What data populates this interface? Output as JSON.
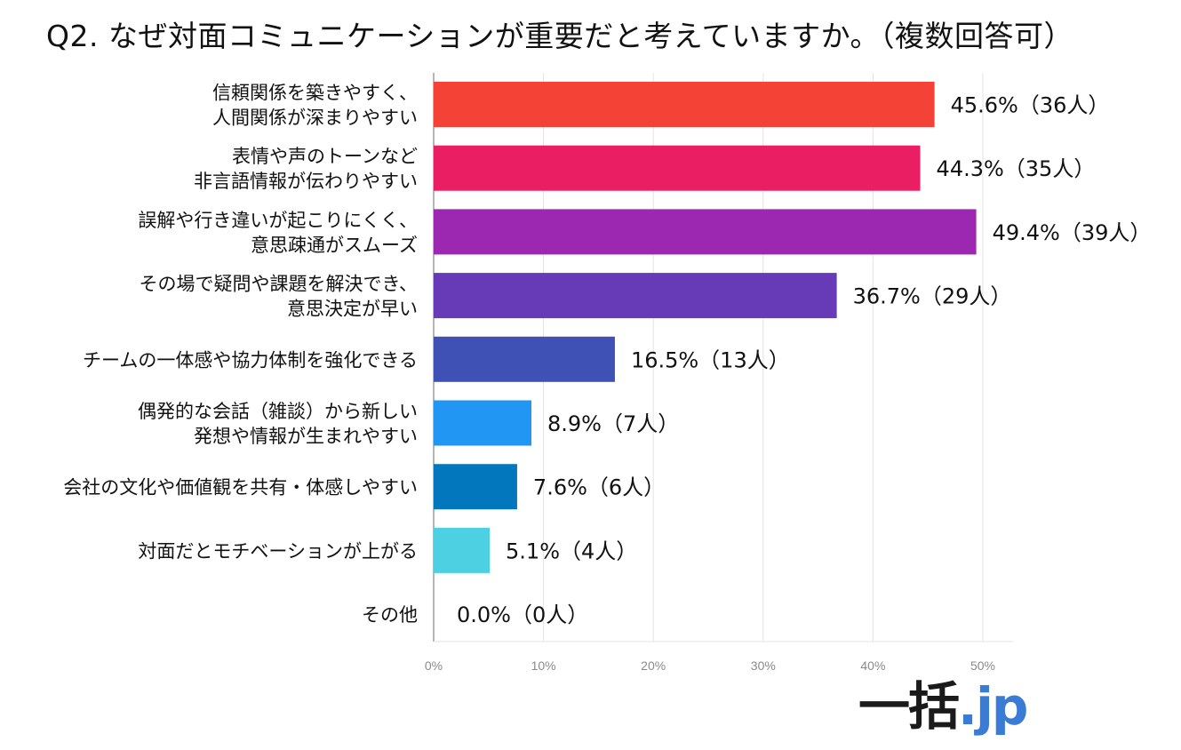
{
  "title": "Q2. なぜ対面コミュニケーションが重要だと考えていますか。（複数回答可）",
  "chart_data": {
    "type": "bar",
    "orientation": "horizontal",
    "title": "Q2. なぜ対面コミュニケーションが重要だと考えていますか。（複数回答可）",
    "xlim": [
      0,
      52
    ],
    "grid": true,
    "ticks": [
      "0%",
      "10%",
      "20%",
      "30%",
      "40%",
      "50%"
    ],
    "tick_values": [
      0,
      10,
      20,
      30,
      40,
      50
    ],
    "categories": [
      [
        "信頼関係を築きやすく、",
        "人間関係が深まりやすい"
      ],
      [
        "表情や声のトーンなど",
        "非言語情報が伝わりやすい"
      ],
      [
        "誤解や行き違いが起こりにくく、",
        "意思疎通がスムーズ"
      ],
      [
        "その場で疑問や課題を解決でき、",
        "意思決定が早い"
      ],
      [
        "チームの一体感や協力体制を強化できる"
      ],
      [
        "偶発的な会話（雑談）から新しい",
        "発想や情報が生まれやすい"
      ],
      [
        "会社の文化や価値観を共有・体感しやすい"
      ],
      [
        "対面だとモチベーションが上がる"
      ],
      [
        "その他"
      ]
    ],
    "values": [
      45.6,
      44.3,
      49.4,
      36.7,
      16.5,
      8.9,
      7.6,
      5.1,
      0.0
    ],
    "counts": [
      36,
      35,
      39,
      29,
      13,
      7,
      6,
      4,
      0
    ],
    "value_labels": [
      "45.6%（36人）",
      "44.3%（35人）",
      "49.4%（39人）",
      "36.7%（29人）",
      "16.5%（13人）",
      "8.9%（7人）",
      "7.6%（6人）",
      "5.1%（4人）",
      "0.0%（0人）"
    ],
    "colors": [
      "#f44336",
      "#e91e63",
      "#9c27b0",
      "#673ab7",
      "#3f51b5",
      "#2196f3",
      "#0277bd",
      "#4dd0e1",
      "#bdbdbd"
    ]
  },
  "logo": {
    "part1": "一括",
    "part2": ".jp"
  }
}
